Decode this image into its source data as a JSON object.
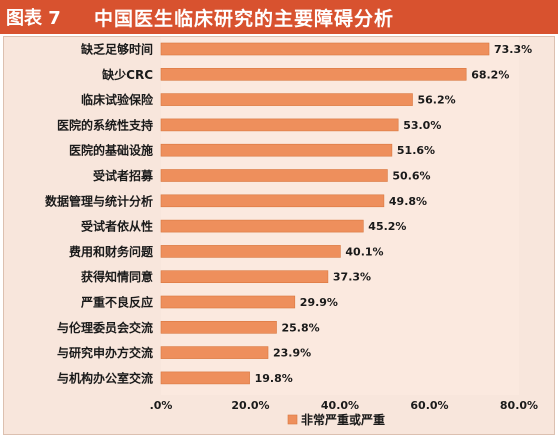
{
  "header": {
    "figure_label": "图表 7",
    "title": "中国医生临床研究的主要障碍分析"
  },
  "colors": {
    "header_bg": "#d8522f",
    "plot_bg": "#fbe9df",
    "bar": "#ee8f5c",
    "bar_edge": "#d9773f"
  },
  "chart_data": {
    "type": "bar",
    "orientation": "horizontal",
    "title": "中国医生临床研究的主要障碍分析",
    "categories": [
      "缺乏足够时间",
      "缺少CRC",
      "临床试验保险",
      "医院的系统性支持",
      "医院的基础设施",
      "受试者招募",
      "数据管理与统计分析",
      "受试者依从性",
      "费用和财务问题",
      "获得知情同意",
      "严重不良反应",
      "与伦理委员会交流",
      "与研究申办方交流",
      "与机构办公室交流"
    ],
    "series": [
      {
        "name": "非常严重或严重",
        "values": [
          73.3,
          68.2,
          56.2,
          53.0,
          51.6,
          50.6,
          49.8,
          45.2,
          40.1,
          37.3,
          29.9,
          25.8,
          23.9,
          19.8
        ],
        "value_labels": [
          "73.3%",
          "68.2%",
          "56.2%",
          "53.0%",
          "51.6%",
          "50.6%",
          "49.8%",
          "45.2%",
          "40.1%",
          "37.3%",
          "29.9%",
          "25.8%",
          "23.9%",
          "19.8%"
        ]
      }
    ],
    "xlim": [
      0,
      80
    ],
    "x_ticks": [
      0,
      20,
      40,
      60,
      80
    ],
    "x_tick_labels": [
      ".0%",
      "20.0%",
      "40.0%",
      "60.0%",
      "80.0%"
    ],
    "grid": false,
    "legend_position": "bottom-right"
  }
}
